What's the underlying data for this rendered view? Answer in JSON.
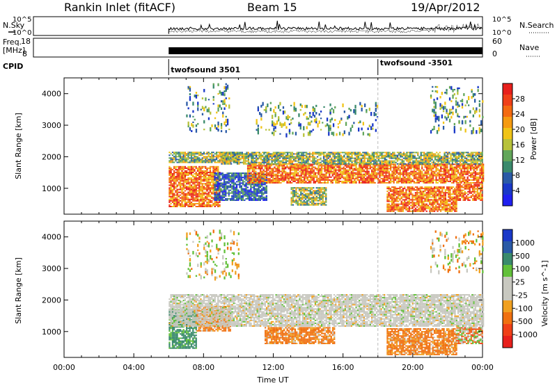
{
  "header": {
    "station": "Rankin Inlet (fitACF)",
    "beam": "Beam 15",
    "date": "19/Apr/2012"
  },
  "panels": {
    "nsky": {
      "left_label": "N.Sky",
      "right_label": "N.Search",
      "left_ticks": [
        "10^5",
        "10^0"
      ],
      "right_ticks": [
        "10^5",
        "10^0"
      ]
    },
    "freq": {
      "left_label_line1": "Freq.",
      "left_label_line2": "[MHz]",
      "right_label": "Nave",
      "left_ticks": [
        "18",
        "8"
      ],
      "right_ticks": [
        "60",
        "0"
      ]
    },
    "cpid": {
      "label": "CPID",
      "programs": [
        "twofsound 3501",
        "twofsound -3501"
      ]
    }
  },
  "power_panel": {
    "ylabel": "Slant Range [km]",
    "colorbar_label": "Power [dB]",
    "colorbar_ticks": [
      "28",
      "24",
      "20",
      "16",
      "12",
      "8",
      "4"
    ],
    "colorbar_colors": [
      "#e8201c",
      "#f04018",
      "#f46a10",
      "#f59a10",
      "#f0c417",
      "#b7c23a",
      "#62a65a",
      "#3a8a6c",
      "#2a5aa6",
      "#1a38c8",
      "#2020f0"
    ]
  },
  "velocity_panel": {
    "ylabel": "Slant Range [km]",
    "colorbar_label": "Velocity [m s^-1]",
    "colorbar_ticks": [
      "1000",
      "500",
      "100",
      "25",
      "-25",
      "-100",
      "-500",
      "-1000"
    ],
    "colorbar_colors": [
      "#1a38c8",
      "#2a5aa6",
      "#3a8a6c",
      "#62c03a",
      "#c8c8c0",
      "#c8c8c0",
      "#f0a020",
      "#f07010",
      "#f04018",
      "#e8201c"
    ]
  },
  "chart_data": {
    "type": "heatmap",
    "xlabel": "Time UT",
    "x_ticks": [
      "00:00",
      "04:00",
      "08:00",
      "12:00",
      "16:00",
      "20:00",
      "00:00"
    ],
    "xlim_hours": [
      0,
      24
    ],
    "y_ticks_km": [
      1000,
      2000,
      3000,
      4000
    ],
    "ylim_km": [
      180,
      4500
    ],
    "data_start_hour": 6.0,
    "cpid_change_hour": 18.0,
    "power_blobs": [
      {
        "t0": 6.0,
        "t1": 8.9,
        "r0": 400,
        "r1": 1700,
        "level": "high"
      },
      {
        "t0": 6.0,
        "t1": 10.0,
        "r0": 1800,
        "r1": 2150,
        "level": "mid"
      },
      {
        "t0": 8.6,
        "t1": 11.6,
        "r0": 600,
        "r1": 1500,
        "level": "low"
      },
      {
        "t0": 10.5,
        "t1": 24.0,
        "r0": 1150,
        "r1": 1750,
        "level": "high"
      },
      {
        "t0": 9.0,
        "t1": 24.0,
        "r0": 1750,
        "r1": 2150,
        "level": "mid"
      },
      {
        "t0": 13.0,
        "t1": 15.0,
        "r0": 450,
        "r1": 1000,
        "level": "mid"
      },
      {
        "t0": 18.5,
        "t1": 22.5,
        "r0": 250,
        "r1": 1050,
        "level": "high"
      },
      {
        "t0": 22.5,
        "t1": 24.0,
        "r0": 600,
        "r1": 1100,
        "level": "high"
      },
      {
        "t0": 21.0,
        "t1": 24.0,
        "r0": 2800,
        "r1": 4200,
        "level": "sparse"
      },
      {
        "t0": 7.0,
        "t1": 9.5,
        "r0": 2800,
        "r1": 4300,
        "level": "sparse"
      },
      {
        "t0": 11.0,
        "t1": 18.0,
        "r0": 2700,
        "r1": 3700,
        "level": "sparse"
      }
    ],
    "velocity_blobs": [
      {
        "t0": 6.0,
        "t1": 7.6,
        "r0": 450,
        "r1": 1700,
        "class": "positive"
      },
      {
        "t0": 7.6,
        "t1": 9.5,
        "r0": 1000,
        "r1": 1800,
        "class": "negative"
      },
      {
        "t0": 6.0,
        "t1": 24.0,
        "r0": 1150,
        "r1": 2150,
        "class": "near-zero"
      },
      {
        "t0": 11.5,
        "t1": 15.5,
        "r0": 600,
        "r1": 1100,
        "class": "negative"
      },
      {
        "t0": 18.5,
        "t1": 22.5,
        "r0": 250,
        "r1": 1100,
        "class": "negative"
      },
      {
        "t0": 22.5,
        "t1": 24.0,
        "r0": 600,
        "r1": 1100,
        "class": "mixed"
      },
      {
        "t0": 21.0,
        "t1": 24.0,
        "r0": 2900,
        "r1": 4200,
        "class": "sparse"
      },
      {
        "t0": 7.0,
        "t1": 10.0,
        "r0": 2700,
        "r1": 4200,
        "class": "sparse"
      }
    ]
  }
}
